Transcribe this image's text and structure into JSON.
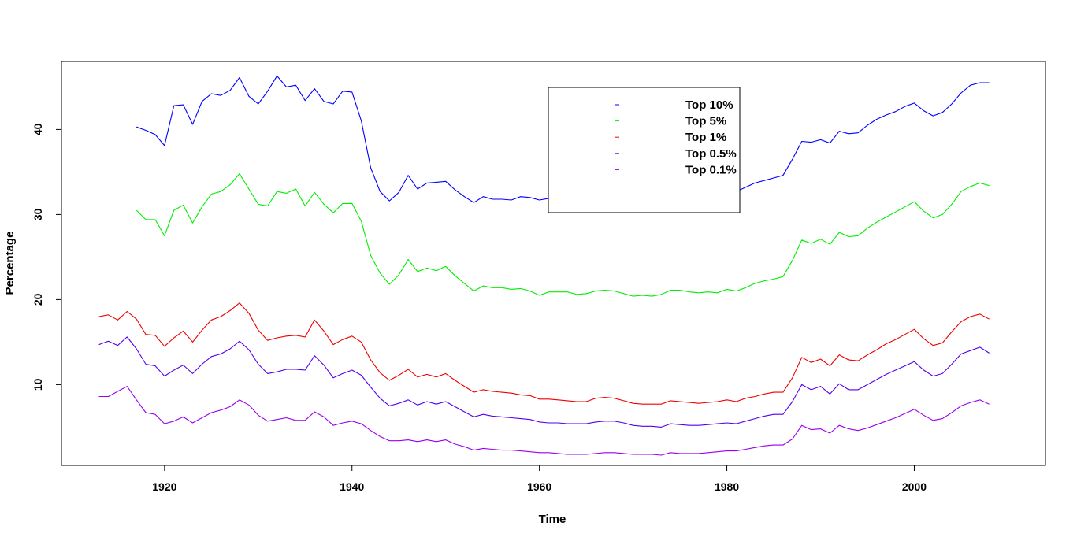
{
  "chart_data": {
    "type": "line",
    "title": "",
    "xlabel": "Time",
    "ylabel": "Percentage",
    "xlim": [
      1909,
      2014
    ],
    "ylim": [
      0.5,
      48
    ],
    "xticks": [
      1920,
      1940,
      1960,
      1980,
      2000
    ],
    "yticks": [
      10,
      20,
      30,
      40
    ],
    "grid": false,
    "legend_position": "top-center",
    "series": [
      {
        "name": "Top 10%",
        "color": "#0000ff",
        "x": [
          1917,
          1918,
          1919,
          1920,
          1921,
          1922,
          1923,
          1924,
          1925,
          1926,
          1927,
          1928,
          1929,
          1930,
          1931,
          1932,
          1933,
          1934,
          1935,
          1936,
          1937,
          1938,
          1939,
          1940,
          1941,
          1942,
          1943,
          1944,
          1945,
          1946,
          1947,
          1948,
          1949,
          1950,
          1951,
          1952,
          1953,
          1954,
          1955,
          1956,
          1957,
          1958,
          1959,
          1960,
          1961,
          1962,
          1963,
          1964,
          1965,
          1966,
          1967,
          1968,
          1969,
          1970,
          1971,
          1972,
          1973,
          1974,
          1975,
          1976,
          1977,
          1978,
          1979,
          1980,
          1981,
          1982,
          1983,
          1984,
          1985,
          1986,
          1987,
          1988,
          1989,
          1990,
          1991,
          1992,
          1993,
          1994,
          1995,
          1996,
          1997,
          1998,
          1999,
          2000,
          2001,
          2002,
          2003,
          2004,
          2005,
          2006,
          2007,
          2008
        ],
        "values": [
          40.3,
          39.9,
          39.4,
          38.1,
          42.8,
          42.9,
          40.6,
          43.3,
          44.2,
          44.0,
          44.6,
          46.1,
          43.9,
          43.0,
          44.5,
          46.3,
          45.0,
          45.2,
          43.4,
          44.8,
          43.3,
          43.0,
          44.5,
          44.4,
          41.0,
          35.5,
          32.7,
          31.6,
          32.6,
          34.6,
          33.0,
          33.7,
          33.8,
          33.9,
          32.9,
          32.1,
          31.4,
          32.1,
          31.8,
          31.8,
          31.7,
          32.1,
          32.0,
          31.7,
          31.9,
          32.0,
          31.9,
          31.7,
          31.5,
          32.0,
          32.0,
          32.0,
          31.8,
          31.5,
          31.7,
          31.6,
          31.9,
          32.4,
          32.6,
          32.4,
          32.4,
          32.4,
          32.3,
          32.9,
          32.7,
          33.2,
          33.7,
          34.0,
          34.3,
          34.6,
          36.5,
          38.6,
          38.5,
          38.8,
          38.4,
          39.8,
          39.5,
          39.6,
          40.5,
          41.2,
          41.7,
          42.1,
          42.7,
          43.1,
          42.2,
          41.6,
          42.0,
          43.0,
          44.3,
          45.2,
          45.5,
          45.5
        ]
      },
      {
        "name": "Top 5%",
        "color": "#00ee00",
        "x": [
          1917,
          1918,
          1919,
          1920,
          1921,
          1922,
          1923,
          1924,
          1925,
          1926,
          1927,
          1928,
          1929,
          1930,
          1931,
          1932,
          1933,
          1934,
          1935,
          1936,
          1937,
          1938,
          1939,
          1940,
          1941,
          1942,
          1943,
          1944,
          1945,
          1946,
          1947,
          1948,
          1949,
          1950,
          1951,
          1952,
          1953,
          1954,
          1955,
          1956,
          1957,
          1958,
          1959,
          1960,
          1961,
          1962,
          1963,
          1964,
          1965,
          1966,
          1967,
          1968,
          1969,
          1970,
          1971,
          1972,
          1973,
          1974,
          1975,
          1976,
          1977,
          1978,
          1979,
          1980,
          1981,
          1982,
          1983,
          1984,
          1985,
          1986,
          1987,
          1988,
          1989,
          1990,
          1991,
          1992,
          1993,
          1994,
          1995,
          1996,
          1997,
          1998,
          1999,
          2000,
          2001,
          2002,
          2003,
          2004,
          2005,
          2006,
          2007,
          2008
        ],
        "values": [
          30.5,
          29.4,
          29.4,
          27.5,
          30.5,
          31.1,
          29.0,
          30.9,
          32.4,
          32.7,
          33.5,
          34.8,
          33.0,
          31.2,
          31.0,
          32.7,
          32.5,
          33.0,
          31.0,
          32.6,
          31.2,
          30.2,
          31.3,
          31.3,
          29.2,
          25.2,
          23.1,
          21.8,
          22.9,
          24.7,
          23.3,
          23.7,
          23.4,
          23.9,
          22.8,
          21.9,
          21.0,
          21.6,
          21.4,
          21.4,
          21.2,
          21.3,
          21.0,
          20.5,
          20.9,
          20.9,
          20.9,
          20.6,
          20.7,
          21.0,
          21.1,
          21.0,
          20.7,
          20.4,
          20.5,
          20.4,
          20.6,
          21.1,
          21.1,
          20.9,
          20.8,
          20.9,
          20.8,
          21.2,
          21.0,
          21.4,
          21.9,
          22.2,
          22.4,
          22.7,
          24.6,
          27.0,
          26.6,
          27.1,
          26.5,
          27.9,
          27.4,
          27.5,
          28.4,
          29.1,
          29.7,
          30.3,
          30.9,
          31.5,
          30.4,
          29.6,
          30.0,
          31.2,
          32.7,
          33.3,
          33.7,
          33.4
        ]
      },
      {
        "name": "Top 1%",
        "color": "#ee0000",
        "x": [
          1913,
          1914,
          1915,
          1916,
          1917,
          1918,
          1919,
          1920,
          1921,
          1922,
          1923,
          1924,
          1925,
          1926,
          1927,
          1928,
          1929,
          1930,
          1931,
          1932,
          1933,
          1934,
          1935,
          1936,
          1937,
          1938,
          1939,
          1940,
          1941,
          1942,
          1943,
          1944,
          1945,
          1946,
          1947,
          1948,
          1949,
          1950,
          1951,
          1952,
          1953,
          1954,
          1955,
          1956,
          1957,
          1958,
          1959,
          1960,
          1961,
          1962,
          1963,
          1964,
          1965,
          1966,
          1967,
          1968,
          1969,
          1970,
          1971,
          1972,
          1973,
          1974,
          1975,
          1976,
          1977,
          1978,
          1979,
          1980,
          1981,
          1982,
          1983,
          1984,
          1985,
          1986,
          1987,
          1988,
          1989,
          1990,
          1991,
          1992,
          1993,
          1994,
          1995,
          1996,
          1997,
          1998,
          1999,
          2000,
          2001,
          2002,
          2003,
          2004,
          2005,
          2006,
          2007,
          2008
        ],
        "values": [
          18.0,
          18.2,
          17.6,
          18.6,
          17.7,
          15.9,
          15.8,
          14.5,
          15.5,
          16.3,
          15.0,
          16.4,
          17.6,
          18.0,
          18.7,
          19.6,
          18.4,
          16.4,
          15.2,
          15.5,
          15.7,
          15.8,
          15.6,
          17.6,
          16.3,
          14.7,
          15.3,
          15.7,
          15.0,
          12.9,
          11.4,
          10.5,
          11.1,
          11.8,
          10.9,
          11.2,
          10.9,
          11.3,
          10.5,
          9.8,
          9.1,
          9.4,
          9.2,
          9.1,
          9.0,
          8.8,
          8.7,
          8.3,
          8.3,
          8.2,
          8.1,
          8.0,
          8.0,
          8.4,
          8.5,
          8.4,
          8.1,
          7.8,
          7.7,
          7.7,
          7.7,
          8.1,
          8.0,
          7.9,
          7.8,
          7.9,
          8.0,
          8.2,
          8.0,
          8.4,
          8.6,
          8.9,
          9.1,
          9.1,
          10.8,
          13.2,
          12.6,
          13.0,
          12.2,
          13.5,
          12.9,
          12.8,
          13.5,
          14.1,
          14.8,
          15.3,
          15.9,
          16.5,
          15.4,
          14.6,
          14.9,
          16.2,
          17.4,
          18.0,
          18.3,
          17.7
        ]
      },
      {
        "name": "Top 0.5%",
        "color": "#5500ee",
        "x": [
          1913,
          1914,
          1915,
          1916,
          1917,
          1918,
          1919,
          1920,
          1921,
          1922,
          1923,
          1924,
          1925,
          1926,
          1927,
          1928,
          1929,
          1930,
          1931,
          1932,
          1933,
          1934,
          1935,
          1936,
          1937,
          1938,
          1939,
          1940,
          1941,
          1942,
          1943,
          1944,
          1945,
          1946,
          1947,
          1948,
          1949,
          1950,
          1951,
          1952,
          1953,
          1954,
          1955,
          1956,
          1957,
          1958,
          1959,
          1960,
          1961,
          1962,
          1963,
          1964,
          1965,
          1966,
          1967,
          1968,
          1969,
          1970,
          1971,
          1972,
          1973,
          1974,
          1975,
          1976,
          1977,
          1978,
          1979,
          1980,
          1981,
          1982,
          1983,
          1984,
          1985,
          1986,
          1987,
          1988,
          1989,
          1990,
          1991,
          1992,
          1993,
          1994,
          1995,
          1996,
          1997,
          1998,
          1999,
          2000,
          2001,
          2002,
          2003,
          2004,
          2005,
          2006,
          2007,
          2008
        ],
        "values": [
          14.7,
          15.1,
          14.6,
          15.6,
          14.2,
          12.4,
          12.2,
          11.0,
          11.7,
          12.3,
          11.3,
          12.4,
          13.3,
          13.6,
          14.2,
          15.1,
          14.1,
          12.4,
          11.3,
          11.5,
          11.8,
          11.8,
          11.7,
          13.4,
          12.3,
          10.8,
          11.3,
          11.7,
          11.1,
          9.7,
          8.4,
          7.5,
          7.8,
          8.2,
          7.6,
          8.0,
          7.7,
          8.0,
          7.4,
          6.8,
          6.2,
          6.5,
          6.3,
          6.2,
          6.1,
          6.0,
          5.9,
          5.6,
          5.5,
          5.5,
          5.4,
          5.4,
          5.4,
          5.6,
          5.7,
          5.7,
          5.5,
          5.2,
          5.1,
          5.1,
          5.0,
          5.4,
          5.3,
          5.2,
          5.2,
          5.3,
          5.4,
          5.5,
          5.4,
          5.7,
          6.0,
          6.3,
          6.5,
          6.5,
          8.0,
          10.0,
          9.4,
          9.8,
          8.9,
          10.1,
          9.4,
          9.4,
          10.0,
          10.6,
          11.2,
          11.7,
          12.2,
          12.7,
          11.7,
          11.0,
          11.3,
          12.4,
          13.6,
          14.0,
          14.4,
          13.7
        ]
      },
      {
        "name": "Top 0.1%",
        "color": "#9900ee",
        "x": [
          1913,
          1914,
          1915,
          1916,
          1917,
          1918,
          1919,
          1920,
          1921,
          1922,
          1923,
          1924,
          1925,
          1926,
          1927,
          1928,
          1929,
          1930,
          1931,
          1932,
          1933,
          1934,
          1935,
          1936,
          1937,
          1938,
          1939,
          1940,
          1941,
          1942,
          1943,
          1944,
          1945,
          1946,
          1947,
          1948,
          1949,
          1950,
          1951,
          1952,
          1953,
          1954,
          1955,
          1956,
          1957,
          1958,
          1959,
          1960,
          1961,
          1962,
          1963,
          1964,
          1965,
          1966,
          1967,
          1968,
          1969,
          1970,
          1971,
          1972,
          1973,
          1974,
          1975,
          1976,
          1977,
          1978,
          1979,
          1980,
          1981,
          1982,
          1983,
          1984,
          1985,
          1986,
          1987,
          1988,
          1989,
          1990,
          1991,
          1992,
          1993,
          1994,
          1995,
          1996,
          1997,
          1998,
          1999,
          2000,
          2001,
          2002,
          2003,
          2004,
          2005,
          2006,
          2007,
          2008
        ],
        "values": [
          8.6,
          8.6,
          9.2,
          9.8,
          8.2,
          6.7,
          6.5,
          5.4,
          5.7,
          6.2,
          5.5,
          6.1,
          6.7,
          7.0,
          7.4,
          8.2,
          7.6,
          6.4,
          5.7,
          5.9,
          6.1,
          5.8,
          5.8,
          6.8,
          6.2,
          5.2,
          5.5,
          5.7,
          5.4,
          4.6,
          3.9,
          3.4,
          3.4,
          3.5,
          3.3,
          3.5,
          3.3,
          3.5,
          3.0,
          2.7,
          2.3,
          2.5,
          2.4,
          2.3,
          2.3,
          2.2,
          2.1,
          2.0,
          2.0,
          1.9,
          1.8,
          1.8,
          1.8,
          1.9,
          2.0,
          2.0,
          1.9,
          1.8,
          1.8,
          1.8,
          1.7,
          2.0,
          1.9,
          1.9,
          1.9,
          2.0,
          2.1,
          2.2,
          2.2,
          2.4,
          2.6,
          2.8,
          2.9,
          2.9,
          3.6,
          5.2,
          4.7,
          4.8,
          4.3,
          5.2,
          4.8,
          4.6,
          4.9,
          5.3,
          5.7,
          6.1,
          6.6,
          7.1,
          6.4,
          5.8,
          6.0,
          6.7,
          7.5,
          7.9,
          8.2,
          7.7
        ]
      }
    ]
  }
}
